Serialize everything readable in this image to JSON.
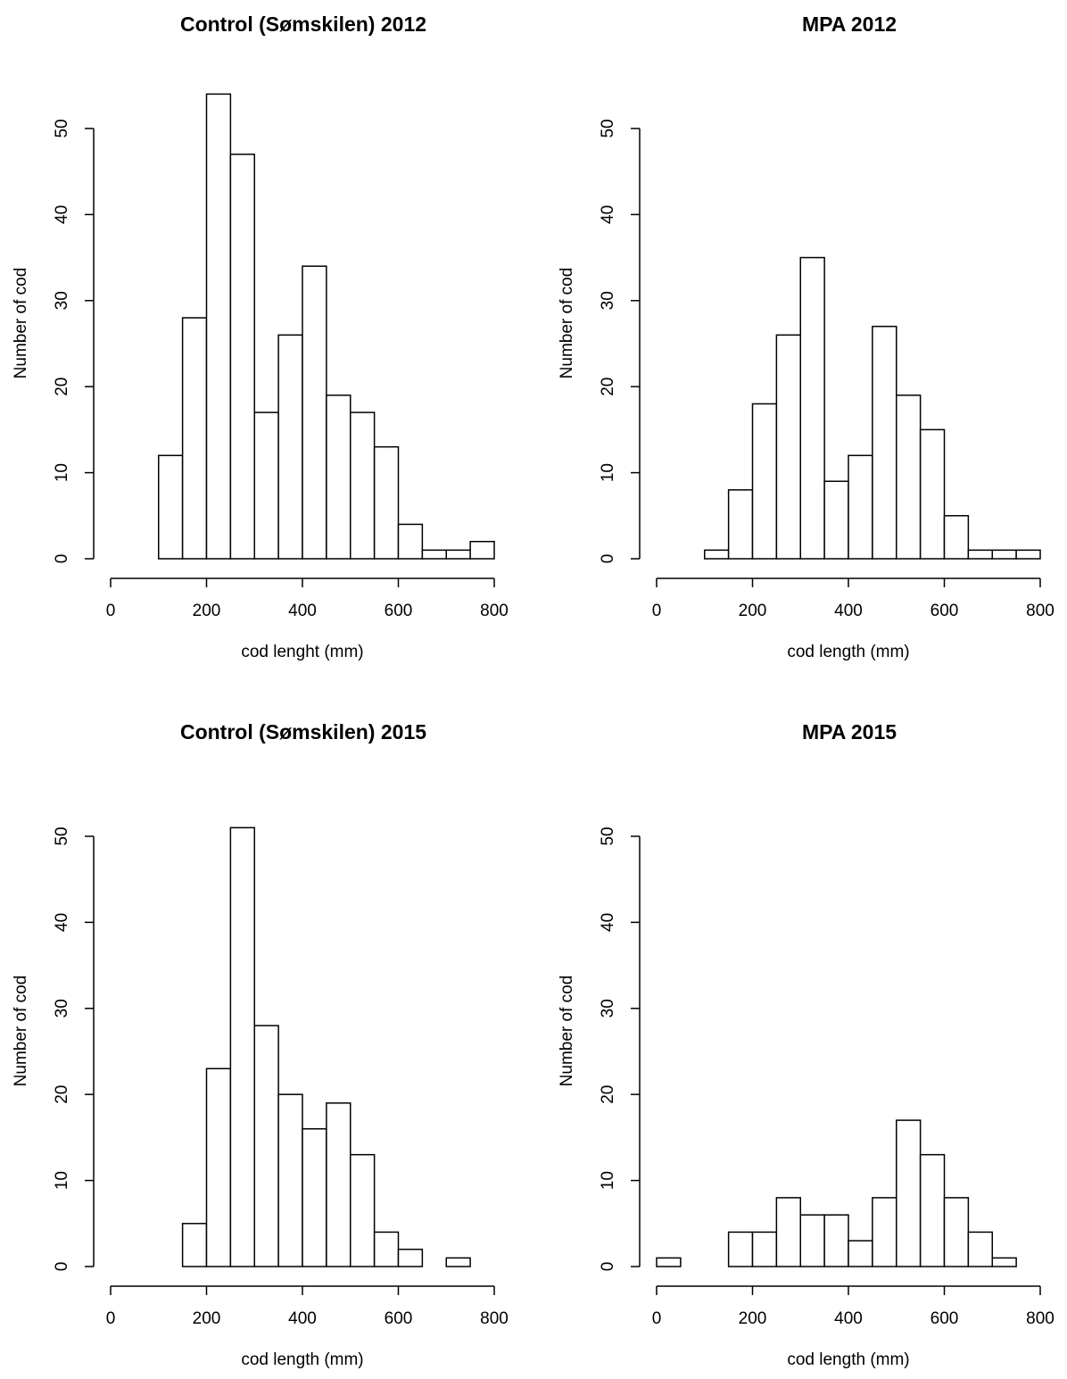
{
  "chart_data": [
    {
      "type": "histogram",
      "title": "Control (Sømskilen) 2012",
      "xlabel": "cod lenght (mm)",
      "ylabel": "Number of cod",
      "bins": [
        0,
        50,
        100,
        150,
        200,
        250,
        300,
        350,
        400,
        450,
        500,
        550,
        600,
        650,
        700,
        750,
        800
      ],
      "counts": [
        0,
        0,
        12,
        28,
        54,
        47,
        17,
        26,
        34,
        19,
        17,
        13,
        4,
        1,
        1,
        2
      ],
      "xlim": [
        0,
        800
      ],
      "ylim": [
        0,
        54
      ],
      "xticks": [
        0,
        200,
        400,
        600,
        800
      ],
      "yticks": [
        0,
        10,
        20,
        30,
        40,
        50
      ],
      "color": "#ffffff",
      "edgecolor": "#000000"
    },
    {
      "type": "histogram",
      "title": "MPA 2012",
      "xlabel": "cod length (mm)",
      "ylabel": "Number of cod",
      "bins": [
        0,
        50,
        100,
        150,
        200,
        250,
        300,
        350,
        400,
        450,
        500,
        550,
        600,
        650,
        700,
        750,
        800
      ],
      "counts": [
        0,
        0,
        1,
        8,
        18,
        26,
        35,
        9,
        12,
        27,
        19,
        15,
        5,
        1,
        1,
        1
      ],
      "xlim": [
        0,
        800
      ],
      "ylim": [
        0,
        54
      ],
      "xticks": [
        0,
        200,
        400,
        600,
        800
      ],
      "yticks": [
        0,
        10,
        20,
        30,
        40,
        50
      ],
      "color": "#ffffff",
      "edgecolor": "#000000"
    },
    {
      "type": "histogram",
      "title": "Control (Sømskilen) 2015",
      "xlabel": "cod length (mm)",
      "ylabel": "Number of cod",
      "bins": [
        0,
        50,
        100,
        150,
        200,
        250,
        300,
        350,
        400,
        450,
        500,
        550,
        600,
        650,
        700,
        750,
        800
      ],
      "counts": [
        0,
        0,
        0,
        5,
        23,
        51,
        28,
        20,
        16,
        19,
        13,
        4,
        2,
        0,
        1,
        0
      ],
      "xlim": [
        0,
        800
      ],
      "ylim": [
        0,
        54
      ],
      "xticks": [
        0,
        200,
        400,
        600,
        800
      ],
      "yticks": [
        0,
        10,
        20,
        30,
        40,
        50
      ],
      "color": "#ffffff",
      "edgecolor": "#000000"
    },
    {
      "type": "histogram",
      "title": "MPA 2015",
      "xlabel": "cod length (mm)",
      "ylabel": "Number of cod",
      "bins": [
        0,
        50,
        100,
        150,
        200,
        250,
        300,
        350,
        400,
        450,
        500,
        550,
        600,
        650,
        700,
        750,
        800
      ],
      "counts": [
        1,
        0,
        0,
        4,
        4,
        8,
        6,
        6,
        3,
        8,
        17,
        13,
        8,
        4,
        1,
        0
      ],
      "xlim": [
        0,
        800
      ],
      "ylim": [
        0,
        54
      ],
      "xticks": [
        0,
        200,
        400,
        600,
        800
      ],
      "yticks": [
        0,
        10,
        20,
        30,
        40,
        50
      ],
      "color": "#ffffff",
      "edgecolor": "#000000"
    }
  ]
}
